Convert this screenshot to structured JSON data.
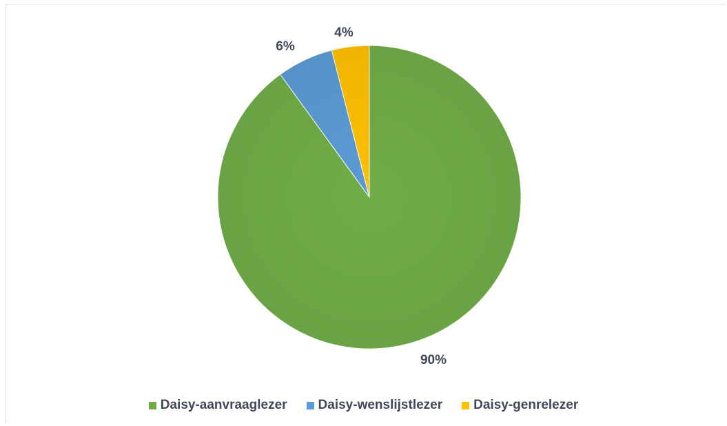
{
  "chart_data": {
    "type": "pie",
    "title": "",
    "categories": [
      "Daisy-aanvraaglezer",
      "Daisy-wenslijstlezer",
      "Daisy-genrelezer"
    ],
    "values": [
      90,
      6,
      4
    ],
    "value_labels": [
      "90%",
      "6%",
      "4%"
    ],
    "colors": [
      "#70AD47",
      "#5B9BD5",
      "#FFC000"
    ],
    "start_angle_deg": 0,
    "direction": "clockwise",
    "legend_position": "bottom"
  }
}
